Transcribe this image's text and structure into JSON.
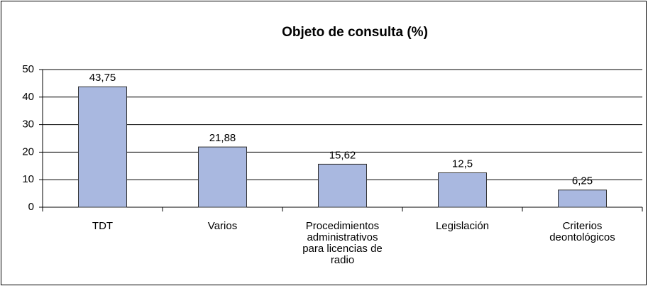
{
  "chart_data": {
    "type": "bar",
    "title": "Objeto de consulta (%)",
    "categories": [
      "TDT",
      "Varios",
      "Procedimientos administrativos para licencias de radio",
      "Legislación",
      "Criterios deontológicos"
    ],
    "values": [
      43.75,
      21.88,
      15.62,
      12.5,
      6.25
    ],
    "value_labels": [
      "43,75",
      "21,88",
      "15,62",
      "12,5",
      "6,25"
    ],
    "color": "#a9b8e0",
    "ylim": [
      0,
      50
    ],
    "yticks": [
      0,
      10,
      20,
      30,
      40,
      50
    ],
    "grid": true
  }
}
